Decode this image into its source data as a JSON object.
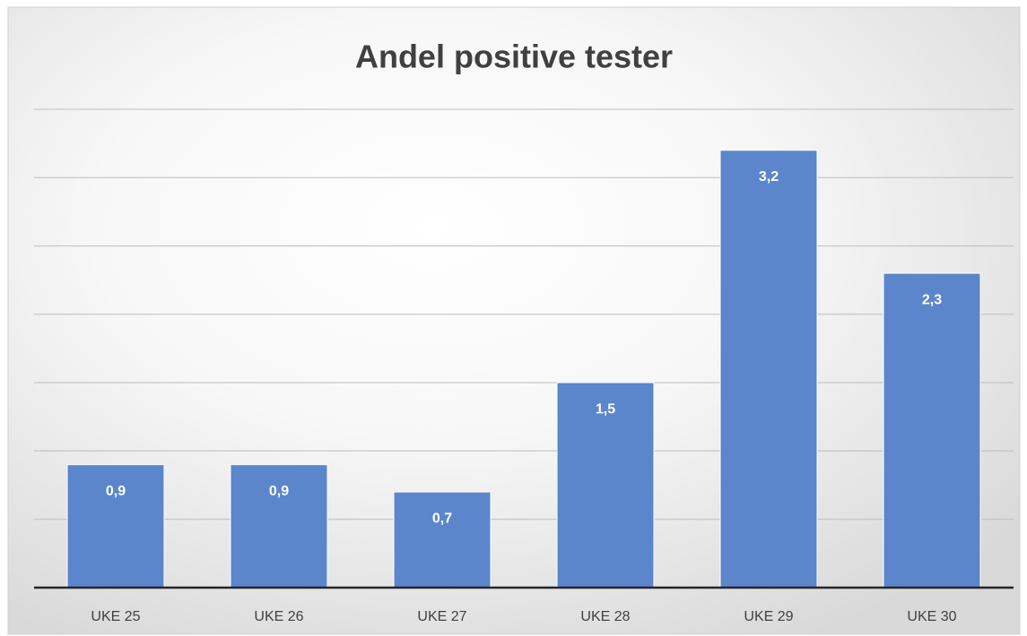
{
  "chart_data": {
    "type": "bar",
    "title": "Andel positive tester",
    "categories": [
      "UKE 25",
      "UKE 26",
      "UKE 27",
      "UKE 28",
      "UKE 29",
      "UKE 30"
    ],
    "values": [
      0.9,
      0.9,
      0.7,
      1.5,
      3.2,
      2.3
    ],
    "value_labels": [
      "0,9",
      "0,9",
      "0,7",
      "1,5",
      "3,2",
      "2,3"
    ],
    "color": "#5b86cc",
    "ylim": [
      0,
      3.5
    ],
    "yticks": [
      0,
      0.5,
      1,
      1.5,
      2,
      2.5,
      3,
      3.5
    ],
    "grid": true
  }
}
